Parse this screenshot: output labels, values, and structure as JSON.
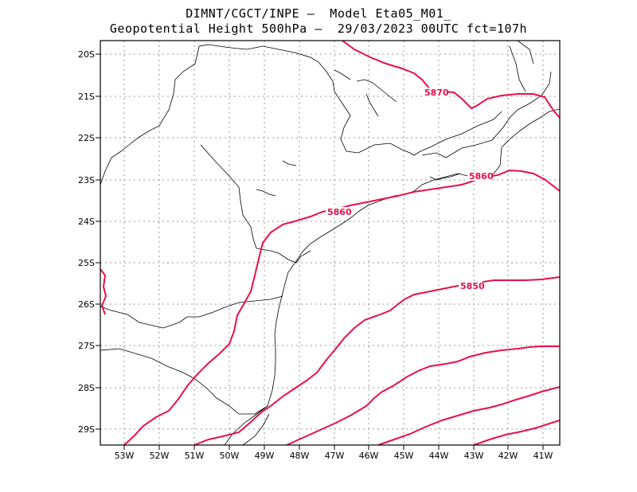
{
  "header": {
    "line1": "DIMNT/CGCT/INPE –  Model Eta05_M01_",
    "line2": "Geopotential Height 500hPa –  29/03/2023 00UTC fct=107h"
  },
  "map": {
    "lat_labels": [
      "20S",
      "21S",
      "22S",
      "23S",
      "24S",
      "25S",
      "26S",
      "27S",
      "28S",
      "29S"
    ],
    "lon_labels": [
      "53W",
      "52W",
      "51W",
      "50W",
      "49W",
      "48W",
      "47W",
      "46W",
      "45W",
      "44W",
      "43W",
      "42W",
      "41W"
    ],
    "lat_range": [
      -29.4,
      -19.8
    ],
    "lon_range": [
      -53.7,
      -40.55
    ],
    "contour_color": "#e8104a",
    "contour_labels": [
      "5870",
      "5860",
      "5860",
      "5850"
    ]
  }
}
